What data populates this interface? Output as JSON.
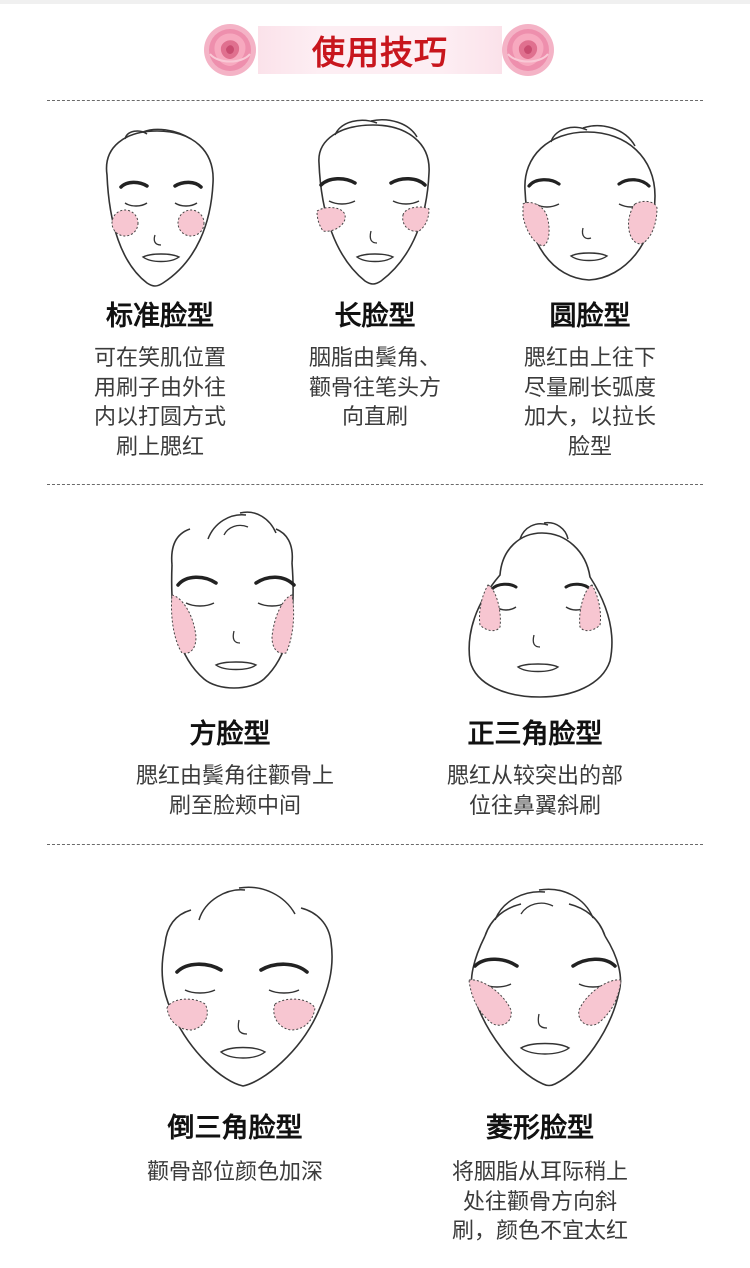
{
  "header": {
    "title": "使用技巧",
    "left_icon": "rose-icon",
    "right_icon": "rose-icon"
  },
  "colors": {
    "title": "#c8161d",
    "banner_bg": "#fdeef3",
    "blush": "#f7c6d1",
    "line": "#333333"
  },
  "face_types": [
    {
      "name": "标准脸型",
      "shape": "standard-face",
      "lines": [
        "可在笑肌位置",
        "用刷子由外往",
        "内以打圆方式",
        "刷上腮红"
      ]
    },
    {
      "name": "长脸型",
      "shape": "long-face",
      "lines": [
        "胭脂由鬓角、",
        "颧骨往笔头方",
        "向直刷"
      ]
    },
    {
      "name": "圆脸型",
      "shape": "round-face",
      "lines": [
        "腮红由上往下",
        "尽量刷长弧度",
        "加大，以拉长",
        "脸型"
      ]
    },
    {
      "name": "方脸型",
      "shape": "square-face",
      "lines": [
        "腮红由鬓角往颧骨上",
        "刷至脸颊中间"
      ]
    },
    {
      "name": "正三角脸型",
      "shape": "triangle-face",
      "lines": [
        "腮红从较突出的部",
        "位往鼻翼斜刷"
      ]
    },
    {
      "name": "倒三角脸型",
      "shape": "inverted-triangle-face",
      "lines": [
        "颧骨部位颜色加深"
      ]
    },
    {
      "name": "菱形脸型",
      "shape": "diamond-face",
      "lines": [
        "将胭脂从耳际稍上",
        "处往颧骨方向斜",
        "刷，颜色不宜太红"
      ]
    }
  ]
}
